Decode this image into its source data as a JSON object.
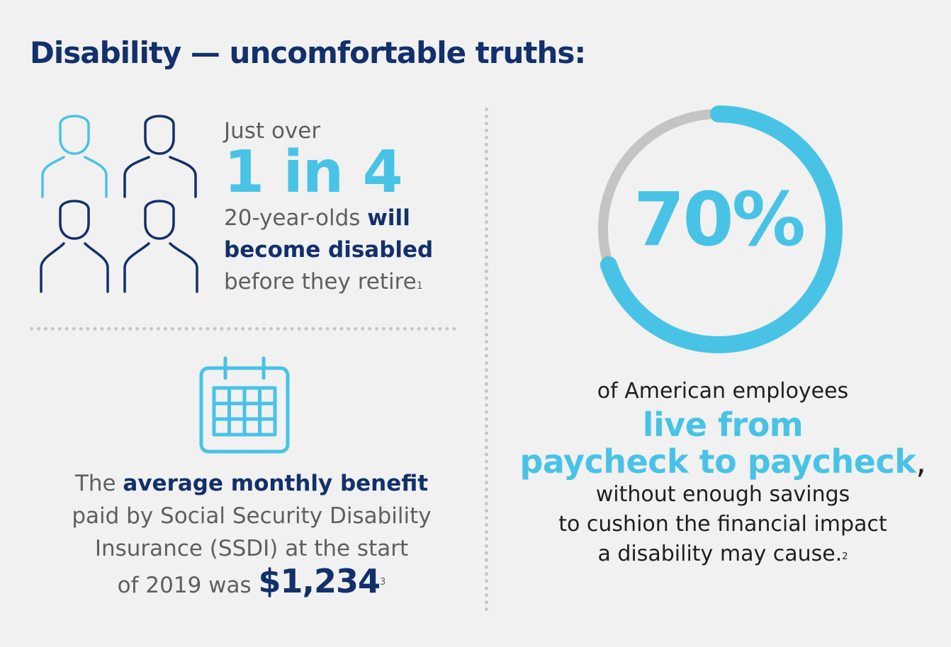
{
  "title": "Disability — uncomfortable truths:",
  "stat_one": {
    "lead": "Just over",
    "headline": "1 in 4",
    "line1_plain": "20-year-olds ",
    "line1_bold": "will",
    "line2_bold": "become disabled",
    "line3_plain": "before they retire",
    "footnote": "1",
    "icon": "people-group-icon"
  },
  "stat_two": {
    "icon": "calendar-icon",
    "line1_plain": "The ",
    "line1_bold": "average monthly benefit",
    "line2": "paid by Social Security Disability",
    "line3": "Insurance (SSDI) at the start",
    "line4_plain": "of 2019 was ",
    "amount": "$1,234",
    "footnote": "3"
  },
  "stat_three": {
    "percent_label": "70%",
    "percent_value": 70,
    "line1": "of American employees",
    "highlight1": "live from",
    "highlight2": "paycheck to paycheck",
    "highlight2_suffix": ",",
    "line2": "without enough savings",
    "line3": "to cushion the financial impact",
    "line4": "a disability may cause.",
    "footnote": "2"
  },
  "colors": {
    "navy": "#12306b",
    "light_blue": "#48c3e6",
    "gray_track": "#c4c4c4",
    "text_gray": "#5f5f5f",
    "background": "#f1f1f1"
  }
}
